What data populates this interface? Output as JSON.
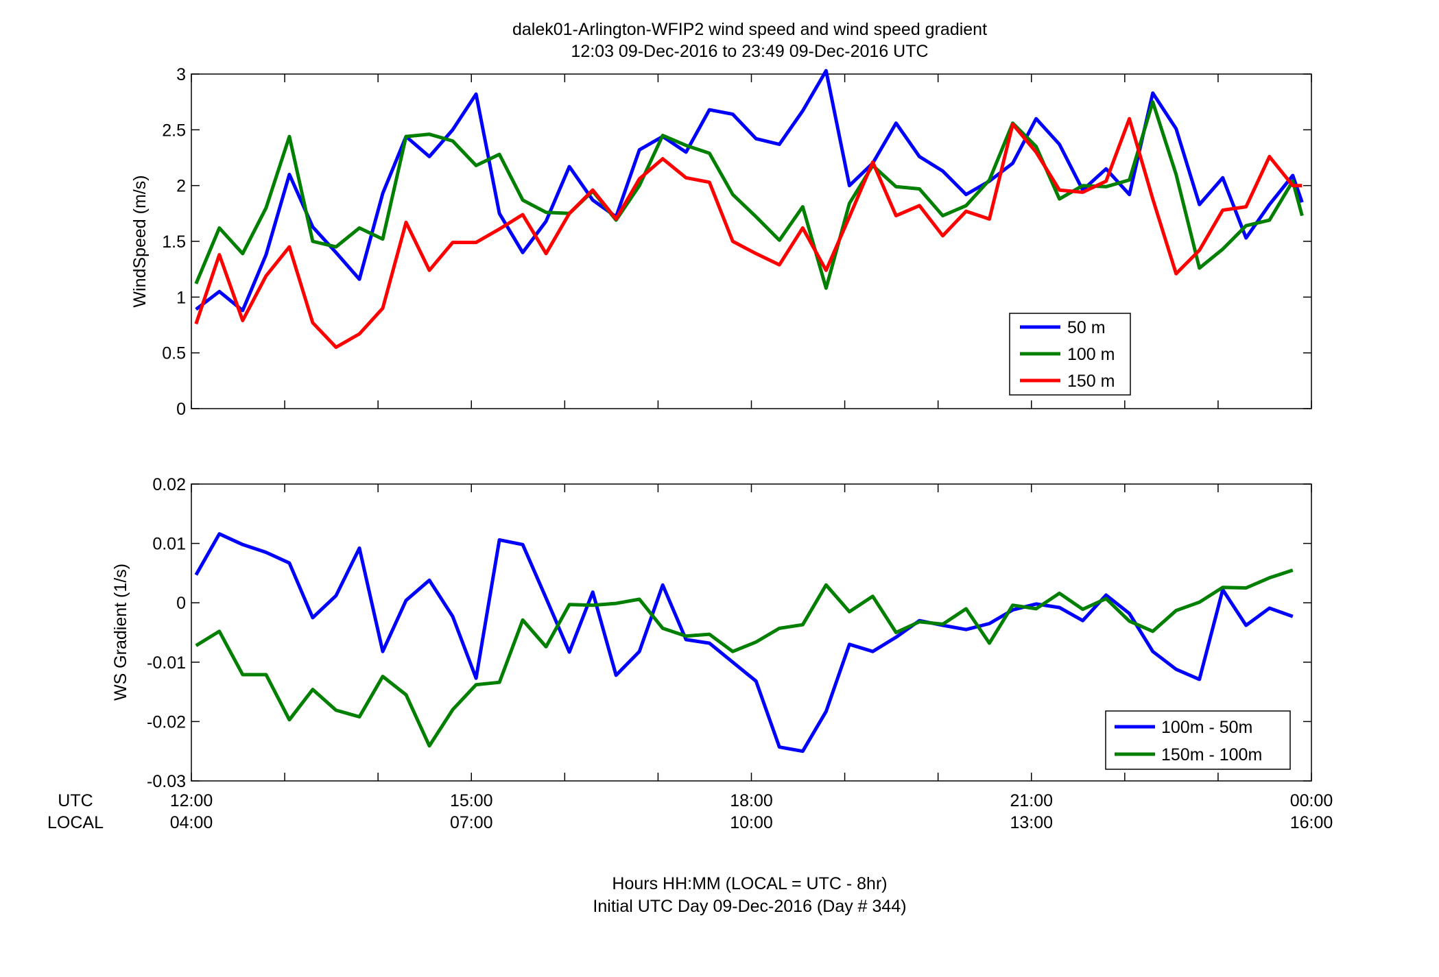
{
  "figure": {
    "title_line1": "dalek01-Arlington-WFIP2  wind speed and wind speed gradient",
    "title_line2": "12:03 09-Dec-2016 to 23:49 09-Dec-2016  UTC",
    "utc_label": "UTC",
    "local_label": "LOCAL",
    "xlabel_line1": "Hours HH:MM  (LOCAL = UTC - 8hr)",
    "xlabel_line2": "Initial UTC Day 09-Dec-2016 (Day # 344)"
  },
  "chart_data": [
    {
      "type": "line",
      "title": "",
      "xlabel": "",
      "ylabel": "WindSpeed (m/s)",
      "xlim": [
        12.0,
        24.0
      ],
      "ylim": [
        0,
        3
      ],
      "yticks": [
        0,
        0.5,
        1,
        1.5,
        2,
        2.5,
        3
      ],
      "ytick_labels": [
        "0",
        "0.5",
        "1",
        "1.5",
        "2",
        "2.5",
        "3"
      ],
      "xticks": [
        12,
        13,
        14,
        15,
        16,
        17,
        18,
        19,
        20,
        21,
        22,
        23,
        24
      ],
      "grid": false,
      "legend": "lower-right",
      "x": [
        12.05,
        12.3,
        12.55,
        12.8,
        13.05,
        13.3,
        13.55,
        13.8,
        14.05,
        14.3,
        14.55,
        14.8,
        15.05,
        15.3,
        15.55,
        15.8,
        16.05,
        16.3,
        16.55,
        16.8,
        17.05,
        17.3,
        17.55,
        17.8,
        18.05,
        18.3,
        18.55,
        18.8,
        19.05,
        19.3,
        19.55,
        19.8,
        20.05,
        20.3,
        20.55,
        20.8,
        21.05,
        21.3,
        21.55,
        21.8,
        22.05,
        22.3,
        22.55,
        22.8,
        23.05,
        23.3,
        23.55,
        23.8
      ],
      "series": [
        {
          "name": "50 m",
          "color": "#0000ff",
          "values": [
            0.89,
            1.05,
            0.88,
            1.38,
            2.1,
            1.63,
            1.4,
            1.16,
            1.93,
            2.44,
            2.26,
            2.5,
            2.82,
            1.75,
            1.4,
            1.68,
            2.17,
            1.87,
            1.72,
            2.32,
            2.44,
            2.3,
            2.68,
            2.64,
            2.42,
            2.37,
            2.67,
            3.03,
            2.0,
            2.2,
            2.56,
            2.26,
            2.13,
            1.92,
            2.04,
            2.2,
            2.6,
            2.37,
            1.96,
            2.15,
            1.92,
            2.83,
            2.51,
            1.83,
            2.07,
            1.53,
            1.83,
            2.09
          ]
        },
        {
          "name": "100 m",
          "color": "#007f00",
          "values": [
            1.12,
            1.62,
            1.39,
            1.8,
            2.44,
            1.5,
            1.45,
            1.62,
            1.52,
            2.44,
            2.46,
            2.4,
            2.18,
            2.28,
            1.87,
            1.76,
            1.75,
            1.95,
            1.69,
            2.0,
            2.45,
            2.36,
            2.29,
            1.92,
            1.72,
            1.51,
            1.81,
            1.08,
            1.84,
            2.18,
            1.99,
            1.97,
            1.73,
            1.82,
            2.05,
            2.56,
            2.35,
            1.88,
            2.0,
            1.99,
            2.05,
            2.75,
            2.1,
            1.26,
            1.43,
            1.64,
            1.69,
            2.04
          ]
        },
        {
          "name": "150 m",
          "color": "#ff0000",
          "values": [
            0.76,
            1.38,
            0.79,
            1.19,
            1.45,
            0.77,
            0.55,
            0.67,
            0.9,
            1.67,
            1.24,
            1.49,
            1.49,
            1.61,
            1.74,
            1.39,
            1.75,
            1.96,
            1.7,
            2.06,
            2.24,
            2.07,
            2.03,
            1.5,
            1.39,
            1.29,
            1.62,
            1.24,
            1.72,
            2.21,
            1.73,
            1.82,
            1.55,
            1.77,
            1.7,
            2.55,
            2.3,
            1.96,
            1.94,
            2.04,
            2.6,
            1.88,
            1.21,
            1.42,
            1.78,
            1.81,
            2.26,
            2.0
          ]
        }
      ],
      "series_end": {
        "x": 23.9,
        "values": [
          1.85,
          1.73,
          2.0
        ]
      }
    },
    {
      "type": "line",
      "title": "",
      "xlabel": "",
      "ylabel": "WS Gradient (1/s)",
      "xlim": [
        12.0,
        24.0
      ],
      "ylim": [
        -0.03,
        0.02
      ],
      "yticks": [
        -0.03,
        -0.02,
        -0.01,
        0,
        0.01,
        0.02
      ],
      "ytick_labels": [
        "-0.03",
        "-0.02",
        "-0.01",
        "0",
        "0.01",
        "0.02"
      ],
      "xticks": [
        12,
        13,
        14,
        15,
        16,
        17,
        18,
        19,
        20,
        21,
        22,
        23,
        24
      ],
      "xtick_labels_utc": [
        "12:00",
        "",
        "",
        "15:00",
        "",
        "",
        "18:00",
        "",
        "",
        "21:00",
        "",
        "",
        "00:00"
      ],
      "xtick_labels_local": [
        "04:00",
        "",
        "",
        "07:00",
        "",
        "",
        "10:00",
        "",
        "",
        "13:00",
        "",
        "",
        "16:00"
      ],
      "grid": false,
      "legend": "lower-right",
      "x": [
        12.05,
        12.3,
        12.55,
        12.8,
        13.05,
        13.3,
        13.55,
        13.8,
        14.05,
        14.3,
        14.55,
        14.8,
        15.05,
        15.3,
        15.55,
        15.8,
        16.05,
        16.3,
        16.55,
        16.8,
        17.05,
        17.3,
        17.55,
        17.8,
        18.05,
        18.3,
        18.55,
        18.8,
        19.05,
        19.3,
        19.55,
        19.8,
        20.05,
        20.3,
        20.55,
        20.8,
        21.05,
        21.3,
        21.55,
        21.8,
        22.05,
        22.3,
        22.55,
        22.8,
        23.05,
        23.3,
        23.55,
        23.8
      ],
      "series": [
        {
          "name": "100m - 50m",
          "color": "#0000ff",
          "values": [
            0.0047,
            0.0116,
            0.0098,
            0.0085,
            0.0067,
            -0.0025,
            0.0012,
            0.0092,
            -0.0082,
            0.0004,
            0.0038,
            -0.0023,
            -0.0127,
            0.0106,
            0.0098,
            0.0008,
            -0.0083,
            0.0018,
            -0.0122,
            -0.0082,
            0.003,
            -0.0062,
            -0.0068,
            -0.01,
            -0.0132,
            -0.0243,
            -0.025,
            -0.0183,
            -0.007,
            -0.0082,
            -0.0058,
            -0.003,
            -0.0038,
            -0.0045,
            -0.0035,
            -0.0012,
            -0.0002,
            -0.0008,
            -0.003,
            0.0013,
            -0.0018,
            -0.0082,
            -0.0112,
            -0.0129,
            0.0022,
            -0.0038,
            -0.0009,
            -0.0023
          ]
        },
        {
          "name": "150m - 100m",
          "color": "#007f00",
          "values": [
            -0.0072,
            -0.0048,
            -0.0121,
            -0.0121,
            -0.0197,
            -0.0146,
            -0.0181,
            -0.0192,
            -0.0124,
            -0.0155,
            -0.0241,
            -0.018,
            -0.0138,
            -0.0134,
            -0.0029,
            -0.0074,
            -0.0003,
            -0.0004,
            -0.0001,
            0.0006,
            -0.0043,
            -0.0056,
            -0.0053,
            -0.0082,
            -0.0066,
            -0.0043,
            -0.0037,
            0.003,
            -0.0015,
            0.0011,
            -0.005,
            -0.0032,
            -0.0036,
            -0.001,
            -0.0068,
            -0.0004,
            -0.001,
            0.0016,
            -0.0011,
            0.0007,
            -0.0031,
            -0.0048,
            -0.0013,
            0.0001,
            0.0026,
            0.0025,
            0.0042,
            0.0055
          ]
        }
      ]
    }
  ]
}
